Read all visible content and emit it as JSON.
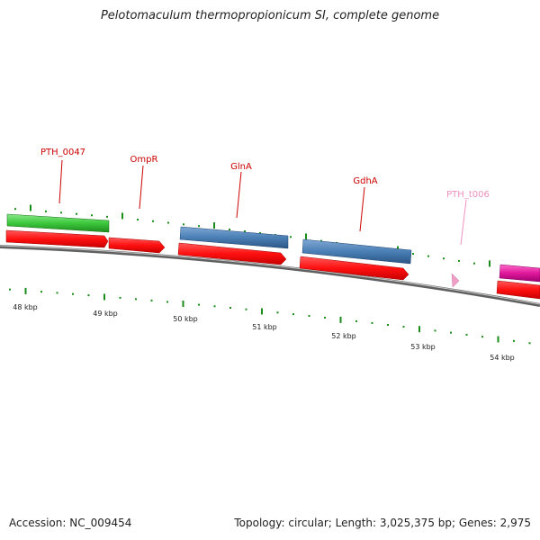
{
  "title": "Pelotomaculum thermopropionicum SI, complete genome",
  "footer": {
    "accession": "Accession: NC_009454",
    "topology": "Topology: circular; Length: 3,025,375 bp; Genes: 2,975"
  },
  "colors": {
    "cds_red": "#ff1a1a",
    "gene_green": "#3cc83c",
    "gene_blue": "#4a7fb5",
    "trna_pink": "#f0a0c8",
    "gene_magenta": "#e0189c",
    "label_red": "#cc0000",
    "label_pink": "#f090c0",
    "tick_green": "#1a8c1a",
    "backbone": "#808080"
  },
  "ticks": [
    {
      "label": "48 kbp"
    },
    {
      "label": "49 kbp"
    },
    {
      "label": "50 kbp"
    },
    {
      "label": "51 kbp"
    },
    {
      "label": "52 kbp"
    },
    {
      "label": "53 kbp"
    },
    {
      "label": "54 kbp"
    }
  ],
  "genes": [
    {
      "label": "PTH_0047",
      "track": "outer",
      "type": "green"
    },
    {
      "label": "OmpR",
      "track": "inner",
      "type": "red"
    },
    {
      "label": "GlnA",
      "track": "outer",
      "type": "blue"
    },
    {
      "label": "GdhA",
      "track": "outer",
      "type": "blue"
    },
    {
      "label": "PTH_t006",
      "track": "inner",
      "type": "pink"
    }
  ]
}
